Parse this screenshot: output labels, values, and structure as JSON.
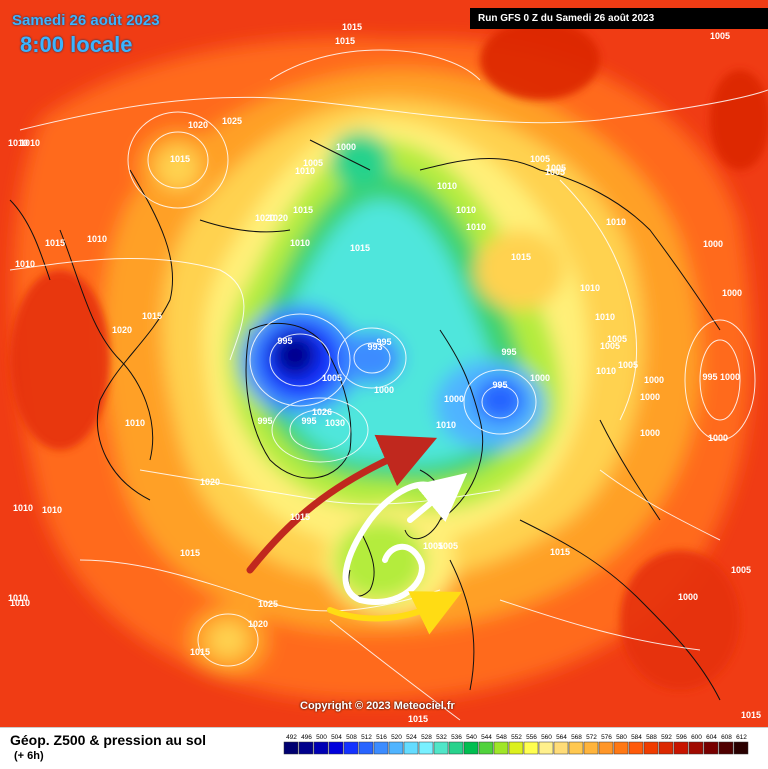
{
  "header": {
    "date": "Samedi 26 août 2023",
    "time": "8:00 locale",
    "run": "Run GFS 0 Z du Samedi 26 août 2023"
  },
  "footer": {
    "title": "Géop. Z500 & pression au sol",
    "subtitle": "(+ 6h)",
    "copyright": "Copyright © 2023 Meteociel.fr"
  },
  "legend": {
    "values": [
      "492",
      "496",
      "500",
      "504",
      "508",
      "512",
      "516",
      "520",
      "524",
      "528",
      "532",
      "536",
      "540",
      "544",
      "548",
      "552",
      "556",
      "560",
      "564",
      "568",
      "572",
      "576",
      "580",
      "584",
      "588",
      "592",
      "596",
      "600",
      "604",
      "608",
      "612"
    ],
    "colors": [
      "#000070",
      "#00008c",
      "#0000b4",
      "#0000dc",
      "#1432ff",
      "#2864ff",
      "#3c8cff",
      "#50b4ff",
      "#64dcff",
      "#78f0ff",
      "#50e6c8",
      "#28d28c",
      "#00be50",
      "#50d23c",
      "#a0e628",
      "#dcf01e",
      "#ffff50",
      "#fff08c",
      "#ffdc78",
      "#ffc850",
      "#ffb43c",
      "#ff9628",
      "#ff7814",
      "#ff5a0a",
      "#f03c00",
      "#dc2800",
      "#c81400",
      "#a00a00",
      "#780000",
      "#500000",
      "#2a0000"
    ]
  },
  "pressure_labels": [
    "1015",
    "1015",
    "1020",
    "1025",
    "1015",
    "1010",
    "1000",
    "1005",
    "1010",
    "1015",
    "1010",
    "1010",
    "1010",
    "1010",
    "1015",
    "1020",
    "1020",
    "1015",
    "1010",
    "1010",
    "1000",
    "1010",
    "1015",
    "1005",
    "1005",
    "1010",
    "1010",
    "1000",
    "995",
    "995",
    "993",
    "995",
    "995",
    "1000",
    "1000",
    "1000",
    "1005",
    "1005",
    "1005",
    "1010",
    "1005",
    "1000",
    "1000",
    "1000",
    "995",
    "995",
    "1010",
    "1010",
    "1000",
    "1000",
    "995",
    "1005",
    "1010",
    "1015",
    "1020",
    "1015",
    "1010",
    "1010",
    "1015",
    "1025",
    "1020",
    "1015",
    "1010",
    "1010",
    "1005",
    "1015",
    "1005",
    "1000",
    "1005",
    "1005",
    "1015",
    "1026",
    "1030",
    "1020",
    "1015"
  ]
}
